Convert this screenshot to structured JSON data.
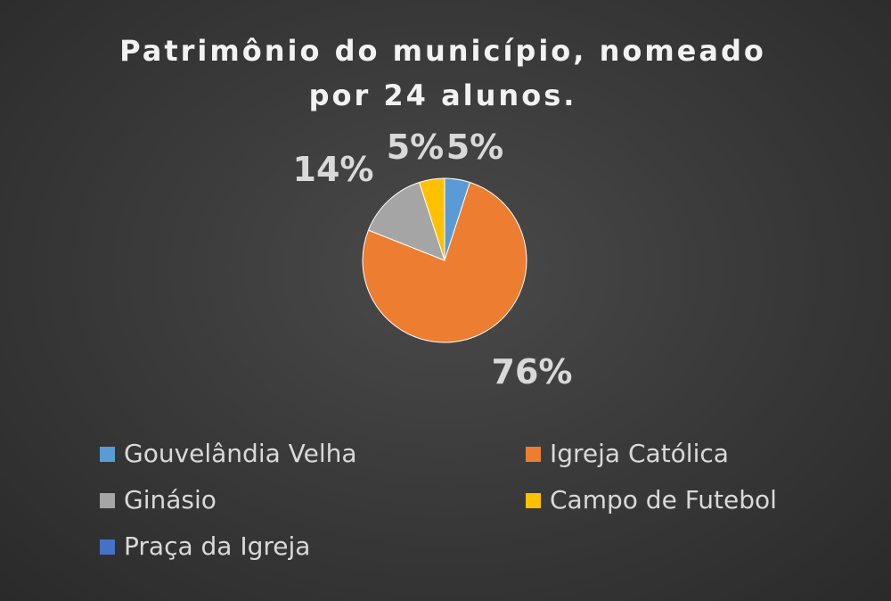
{
  "chart_data": {
    "type": "pie",
    "title": "Patrimônio do município, nomeado por 24 alunos.",
    "title_lines": [
      "Patrimônio do município, nomeado",
      "por 24 alunos."
    ],
    "categories": [
      "Gouvelândia Velha",
      "Igreja Católica",
      "Ginásio",
      "Campo de Futebol",
      "Praça da Igreja"
    ],
    "values": [
      5,
      76,
      14,
      5,
      0
    ],
    "value_labels": [
      "5%",
      "76%",
      "14%",
      "5%",
      ""
    ],
    "colors": [
      "#5b9bd5",
      "#ed7d31",
      "#a5a5a5",
      "#ffc000",
      "#4472c4"
    ],
    "legend_position": "bottom"
  }
}
